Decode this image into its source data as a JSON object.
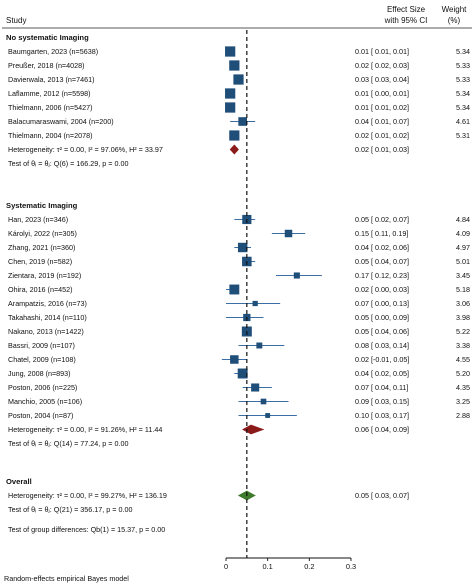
{
  "header": {
    "study": "Study",
    "effect_line1": "Effect Size",
    "effect_line2": "with 95% CI",
    "weight_line1": "Weight",
    "weight_line2": "(%)"
  },
  "footer": {
    "model": "Random-effects empirical Bayes model"
  },
  "colors": {
    "marker": "#1f4e79",
    "ci_line": "#3a6ea5",
    "subgroup_diamond": "#8b1a1a",
    "overall_diamond": "#3d7a2a"
  },
  "chart_data": {
    "type": "forest",
    "x_axis": {
      "min": 0,
      "max": 0.3,
      "ticks": [
        0,
        0.1,
        0.2,
        0.3
      ],
      "tick_labels": [
        "0",
        "0.1",
        "0.2",
        "0.3"
      ]
    },
    "reference_line": 0.05,
    "groups": [
      {
        "name": "No systematic Imaging",
        "studies": [
          {
            "label": "Baumgarten, 2023 (n=5638)",
            "es": 0.01,
            "lo": 0.01,
            "hi": 0.01,
            "effect_text": "0.01 [ 0.01, 0.01]",
            "weight": "5.34"
          },
          {
            "label": "Preußer, 2018 (n=4028)",
            "es": 0.02,
            "lo": 0.02,
            "hi": 0.03,
            "effect_text": "0.02 [ 0.02, 0.03]",
            "weight": "5.33"
          },
          {
            "label": "Davierwala, 2013 (n=7461)",
            "es": 0.03,
            "lo": 0.03,
            "hi": 0.04,
            "effect_text": "0.03 [ 0.03, 0.04]",
            "weight": "5.33"
          },
          {
            "label": "Laflamme, 2012 (n=5598)",
            "es": 0.01,
            "lo": 0.0,
            "hi": 0.01,
            "effect_text": "0.01 [ 0.00, 0.01]",
            "weight": "5.34"
          },
          {
            "label": "Thielmann, 2006 (n=5427)",
            "es": 0.01,
            "lo": 0.01,
            "hi": 0.02,
            "effect_text": "0.01 [ 0.01, 0.02]",
            "weight": "5.34"
          },
          {
            "label": "Balacumaraswami, 2004 (n=200)",
            "es": 0.04,
            "lo": 0.01,
            "hi": 0.07,
            "effect_text": "0.04 [ 0.01, 0.07]",
            "weight": "4.61"
          },
          {
            "label": "Thielmann, 2004 (n=2078)",
            "es": 0.02,
            "lo": 0.01,
            "hi": 0.02,
            "effect_text": "0.02 [ 0.01, 0.02]",
            "weight": "5.31"
          }
        ],
        "heterogeneity": "Heterogeneity: τ² = 0.00, I² = 97.06%, H² = 33.97",
        "test": "Test of θᵢ = θⱼ: Q(6) = 166.29, p = 0.00",
        "pooled": {
          "es": 0.02,
          "lo": 0.01,
          "hi": 0.03,
          "effect_text": "0.02 [ 0.01, 0.03]"
        }
      },
      {
        "name": "Systematic Imaging",
        "studies": [
          {
            "label": "Han, 2023 (n=346)",
            "es": 0.05,
            "lo": 0.02,
            "hi": 0.07,
            "effect_text": "0.05 [ 0.02, 0.07]",
            "weight": "4.84"
          },
          {
            "label": "Károlyi, 2022 (n=305)",
            "es": 0.15,
            "lo": 0.11,
            "hi": 0.19,
            "effect_text": "0.15 [ 0.11, 0.19]",
            "weight": "4.09"
          },
          {
            "label": "Zhang, 2021 (n=360)",
            "es": 0.04,
            "lo": 0.02,
            "hi": 0.06,
            "effect_text": "0.04 [ 0.02, 0.06]",
            "weight": "4.97"
          },
          {
            "label": "Chen, 2019 (n=582)",
            "es": 0.05,
            "lo": 0.04,
            "hi": 0.07,
            "effect_text": "0.05 [ 0.04, 0.07]",
            "weight": "5.01"
          },
          {
            "label": "Zientara, 2019 (n=192)",
            "es": 0.17,
            "lo": 0.12,
            "hi": 0.23,
            "effect_text": "0.17 [ 0.12, 0.23]",
            "weight": "3.45"
          },
          {
            "label": "Ohira, 2016 (n=452)",
            "es": 0.02,
            "lo": 0.0,
            "hi": 0.03,
            "effect_text": "0.02 [ 0.00, 0.03]",
            "weight": "5.18"
          },
          {
            "label": "Arampatzis, 2016 (n=73)",
            "es": 0.07,
            "lo": 0.0,
            "hi": 0.13,
            "effect_text": "0.07 [ 0.00, 0.13]",
            "weight": "3.06"
          },
          {
            "label": "Takahashi, 2014 (n=110)",
            "es": 0.05,
            "lo": 0.0,
            "hi": 0.09,
            "effect_text": "0.05 [ 0.00, 0.09]",
            "weight": "3.98"
          },
          {
            "label": "Nakano, 2013 (n=1422)",
            "es": 0.05,
            "lo": 0.04,
            "hi": 0.06,
            "effect_text": "0.05 [ 0.04, 0.06]",
            "weight": "5.22"
          },
          {
            "label": "Bassri, 2009 (n=107)",
            "es": 0.08,
            "lo": 0.03,
            "hi": 0.14,
            "effect_text": "0.08 [ 0.03, 0.14]",
            "weight": "3.38"
          },
          {
            "label": "Chatel, 2009 (n=108)",
            "es": 0.02,
            "lo": -0.01,
            "hi": 0.05,
            "effect_text": "0.02 [-0.01, 0.05]",
            "weight": "4.55"
          },
          {
            "label": "Jung, 2008 (n=893)",
            "es": 0.04,
            "lo": 0.02,
            "hi": 0.05,
            "effect_text": "0.04 [ 0.02, 0.05]",
            "weight": "5.20"
          },
          {
            "label": "Poston, 2006 (n=225)",
            "es": 0.07,
            "lo": 0.04,
            "hi": 0.11,
            "effect_text": "0.07 [ 0.04, 0.11]",
            "weight": "4.35"
          },
          {
            "label": "Manchio, 2005 (n=106)",
            "es": 0.09,
            "lo": 0.03,
            "hi": 0.15,
            "effect_text": "0.09 [ 0.03, 0.15]",
            "weight": "3.25"
          },
          {
            "label": "Poston, 2004 (n=87)",
            "es": 0.1,
            "lo": 0.03,
            "hi": 0.17,
            "effect_text": "0.10 [ 0.03, 0.17]",
            "weight": "2.88"
          }
        ],
        "heterogeneity": "Heterogeneity: τ² = 0.00, I² = 91.26%, H² = 11.44",
        "test": "Test of θᵢ = θⱼ: Q(14) = 77.24, p = 0.00",
        "pooled": {
          "es": 0.06,
          "lo": 0.04,
          "hi": 0.09,
          "effect_text": "0.06 [ 0.04, 0.09]"
        }
      }
    ],
    "overall": {
      "name": "Overall",
      "es": 0.05,
      "lo": 0.03,
      "hi": 0.07,
      "effect_text": "0.05 [ 0.03,  0.07]",
      "heterogeneity": "Heterogeneity: τ² = 0.00, I² = 99.27%, H² = 136.19",
      "test": "Test of θᵢ = θⱼ: Q(21) = 356.17, p = 0.00",
      "group_test": "Test of group differences: Qb(1) = 15.37, p = 0.00"
    }
  }
}
